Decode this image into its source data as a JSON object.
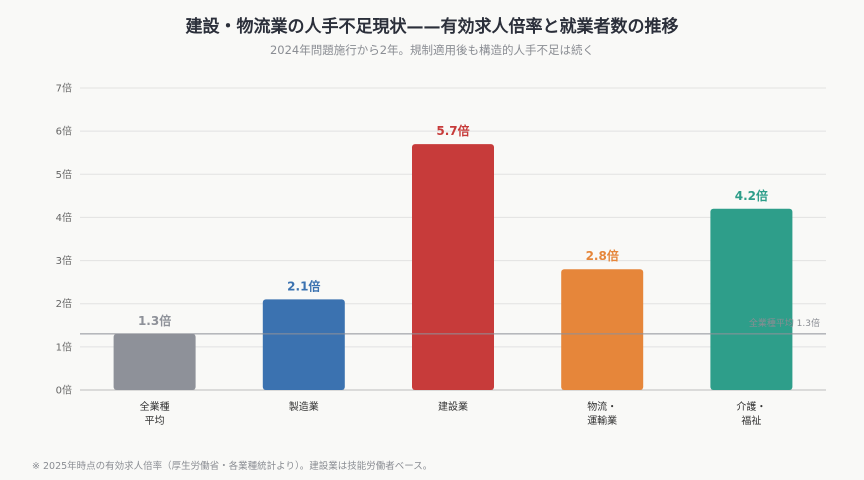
{
  "chart_data": {
    "type": "bar",
    "title": "建設・物流業の人手不足現状——有効求人倍率と就業者数の推移",
    "subtitle": "2024年問題施行から2年。規制適用後も構造的人手不足は続く",
    "categories": [
      [
        "全業種",
        "平均"
      ],
      [
        "製造業"
      ],
      [
        "建設業"
      ],
      [
        "物流・",
        "運輸業"
      ],
      [
        "介護・",
        "福祉"
      ]
    ],
    "values": [
      1.3,
      2.1,
      5.7,
      2.8,
      4.2
    ],
    "value_labels": [
      "1.3倍",
      "2.1倍",
      "5.7倍",
      "2.8倍",
      "4.2倍"
    ],
    "colors": [
      "#8e9199",
      "#3b72b0",
      "#c73b3a",
      "#e6863a",
      "#2e9e8a"
    ],
    "yticks": [
      "0倍",
      "1倍",
      "2倍",
      "3倍",
      "4倍",
      "5倍",
      "6倍",
      "7倍"
    ],
    "ylim": [
      0,
      7
    ],
    "grid": true,
    "reference_line": {
      "value": 1.3,
      "label": "全業種平均 1.3倍",
      "color": "#8e9199"
    },
    "footnote": "※ 2025年時点の有効求人倍率（厚生労働省・各業種統計より）。建設業は技能労働者ベース。"
  }
}
